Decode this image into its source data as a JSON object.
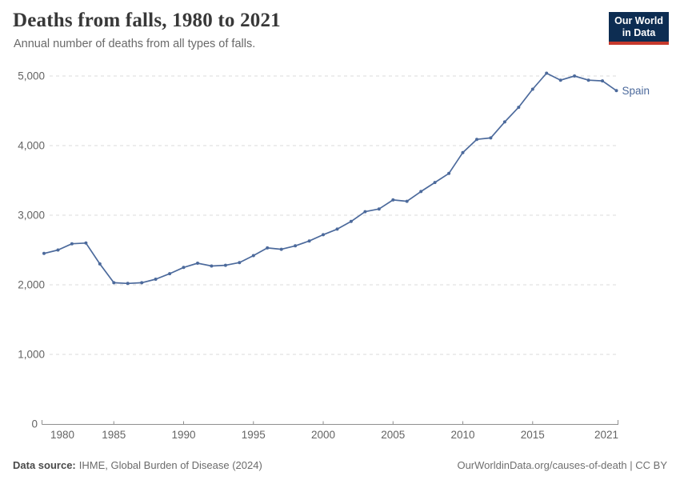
{
  "header": {
    "title": "Deaths from falls, 1980 to 2021",
    "subtitle": "Annual number of deaths from all types of falls.",
    "logo": {
      "line1": "Our World",
      "line2": "in Data"
    }
  },
  "chart_data": {
    "type": "line",
    "title": "Deaths from falls, 1980 to 2021",
    "subtitle": "Annual number of deaths from all types of falls.",
    "x": [
      1980,
      1981,
      1982,
      1983,
      1984,
      1985,
      1986,
      1987,
      1988,
      1989,
      1990,
      1991,
      1992,
      1993,
      1994,
      1995,
      1996,
      1997,
      1998,
      1999,
      2000,
      2001,
      2002,
      2003,
      2004,
      2005,
      2006,
      2007,
      2008,
      2009,
      2010,
      2011,
      2012,
      2013,
      2014,
      2015,
      2016,
      2017,
      2018,
      2019,
      2020,
      2021
    ],
    "series": [
      {
        "name": "Spain",
        "color": "#4C6A9C",
        "values": [
          2450,
          2500,
          2590,
          2600,
          2300,
          2030,
          2020,
          2030,
          2080,
          2160,
          2250,
          2310,
          2270,
          2280,
          2320,
          2420,
          2530,
          2510,
          2560,
          2630,
          2720,
          2800,
          2910,
          3050,
          3090,
          3220,
          3200,
          3340,
          3470,
          3600,
          3900,
          4090,
          4110,
          4340,
          4550,
          4810,
          5040,
          4940,
          5000,
          4940,
          4930,
          4790
        ]
      }
    ],
    "x_ticks": [
      1980,
      1985,
      1990,
      1995,
      2000,
      2005,
      2010,
      2015,
      2021
    ],
    "x_tick_labels": [
      "1980",
      "1985",
      "1990",
      "1995",
      "2000",
      "2005",
      "2010",
      "2015",
      "2021"
    ],
    "y_ticks": [
      0,
      1000,
      2000,
      3000,
      4000,
      5000
    ],
    "y_tick_labels": [
      "0",
      "1,000",
      "2,000",
      "3,000",
      "4,000",
      "5,000"
    ],
    "xlim": [
      1980,
      2021
    ],
    "ylim": [
      0,
      5000
    ],
    "grid": "horizontal-dashed",
    "legend": "end-of-line-label"
  },
  "footer": {
    "source_label": "Data source:",
    "source_value": "IHME, Global Burden of Disease (2024)",
    "credit": "OurWorldinData.org/causes-of-death | CC BY"
  },
  "colors": {
    "series": "#4C6A9C",
    "gridline": "#DBDBDB",
    "axis_line": "#8F8F8F",
    "axis_text": "#646464",
    "logo_background": "#0D2D52",
    "logo_accent": "#C6392C"
  }
}
